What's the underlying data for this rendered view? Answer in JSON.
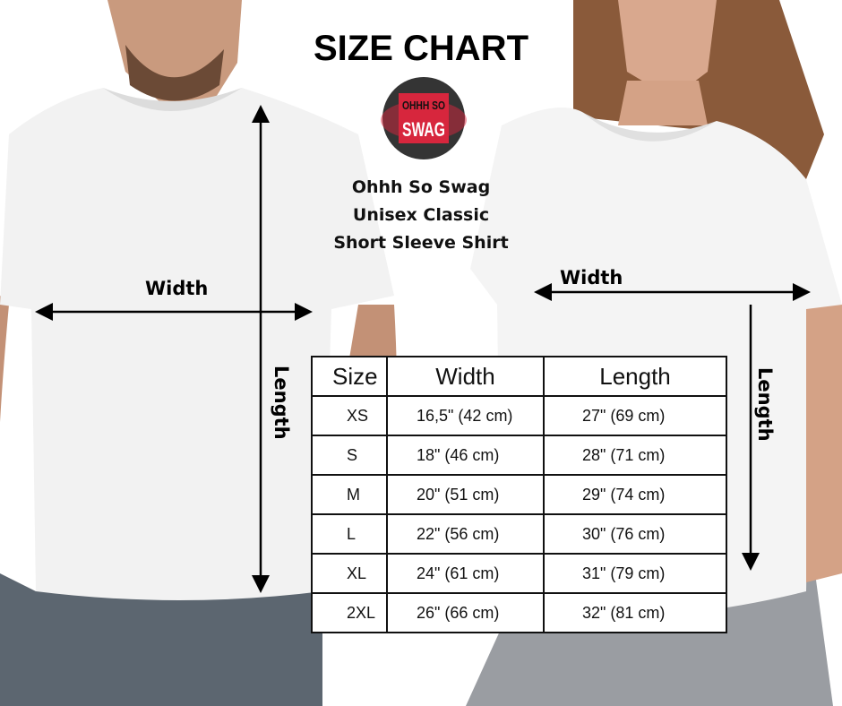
{
  "title": "SIZE CHART",
  "brand": {
    "logo_text_line1": "OHHH SO",
    "logo_text_line2": "SWAG",
    "logo_color": "#d7263d"
  },
  "product": {
    "line1": "Ohhh So Swag",
    "line2": "Unisex Classic",
    "line3": "Short Sleeve Shirt"
  },
  "measure_labels": {
    "men_width": "Width",
    "men_length": "Length",
    "women_width": "Width",
    "women_length": "Length"
  },
  "table": {
    "headers": [
      "Size",
      "Width",
      "Length"
    ],
    "rows": [
      [
        "XS",
        "16,5\" (42 cm)",
        "27\" (69 cm)"
      ],
      [
        "S",
        "18\" (46 cm)",
        "28\" (71 cm)"
      ],
      [
        "M",
        "20\" (51 cm)",
        "29\" (74 cm)"
      ],
      [
        "L",
        "22\" (56 cm)",
        "30\" (76 cm)"
      ],
      [
        "XL",
        "24\" (61 cm)",
        "31\"  (79 cm)"
      ],
      [
        "2XL",
        "26\" (66 cm)",
        "32\" (81 cm)"
      ]
    ]
  }
}
